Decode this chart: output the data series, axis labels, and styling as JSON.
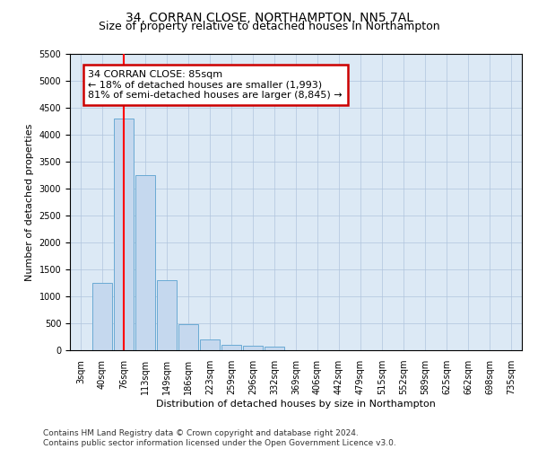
{
  "title": "34, CORRAN CLOSE, NORTHAMPTON, NN5 7AL",
  "subtitle": "Size of property relative to detached houses in Northampton",
  "xlabel": "Distribution of detached houses by size in Northampton",
  "ylabel": "Number of detached properties",
  "categories": [
    "3sqm",
    "40sqm",
    "76sqm",
    "113sqm",
    "149sqm",
    "186sqm",
    "223sqm",
    "259sqm",
    "296sqm",
    "332sqm",
    "369sqm",
    "406sqm",
    "442sqm",
    "479sqm",
    "515sqm",
    "552sqm",
    "589sqm",
    "625sqm",
    "662sqm",
    "698sqm",
    "735sqm"
  ],
  "values": [
    0,
    1250,
    4300,
    3250,
    1300,
    480,
    200,
    100,
    80,
    60,
    0,
    0,
    0,
    0,
    0,
    0,
    0,
    0,
    0,
    0,
    0
  ],
  "bar_color": "#c5d8ee",
  "bar_edge_color": "#6aaad4",
  "red_line_index": 2,
  "annotation_line1": "34 CORRAN CLOSE: 85sqm",
  "annotation_line2": "← 18% of detached houses are smaller (1,993)",
  "annotation_line3": "81% of semi-detached houses are larger (8,845) →",
  "annotation_box_color": "#ffffff",
  "annotation_box_edge_color": "#cc0000",
  "ylim_max": 5500,
  "yticks": [
    0,
    500,
    1000,
    1500,
    2000,
    2500,
    3000,
    3500,
    4000,
    4500,
    5000,
    5500
  ],
  "footer_line1": "Contains HM Land Registry data © Crown copyright and database right 2024.",
  "footer_line2": "Contains public sector information licensed under the Open Government Licence v3.0.",
  "bg_color": "#ffffff",
  "plot_bg_color": "#dce9f5",
  "grid_color": "#b0c4de",
  "title_fontsize": 10,
  "subtitle_fontsize": 9,
  "axis_label_fontsize": 8,
  "tick_fontsize": 7,
  "annotation_fontsize": 8,
  "footer_fontsize": 6.5
}
